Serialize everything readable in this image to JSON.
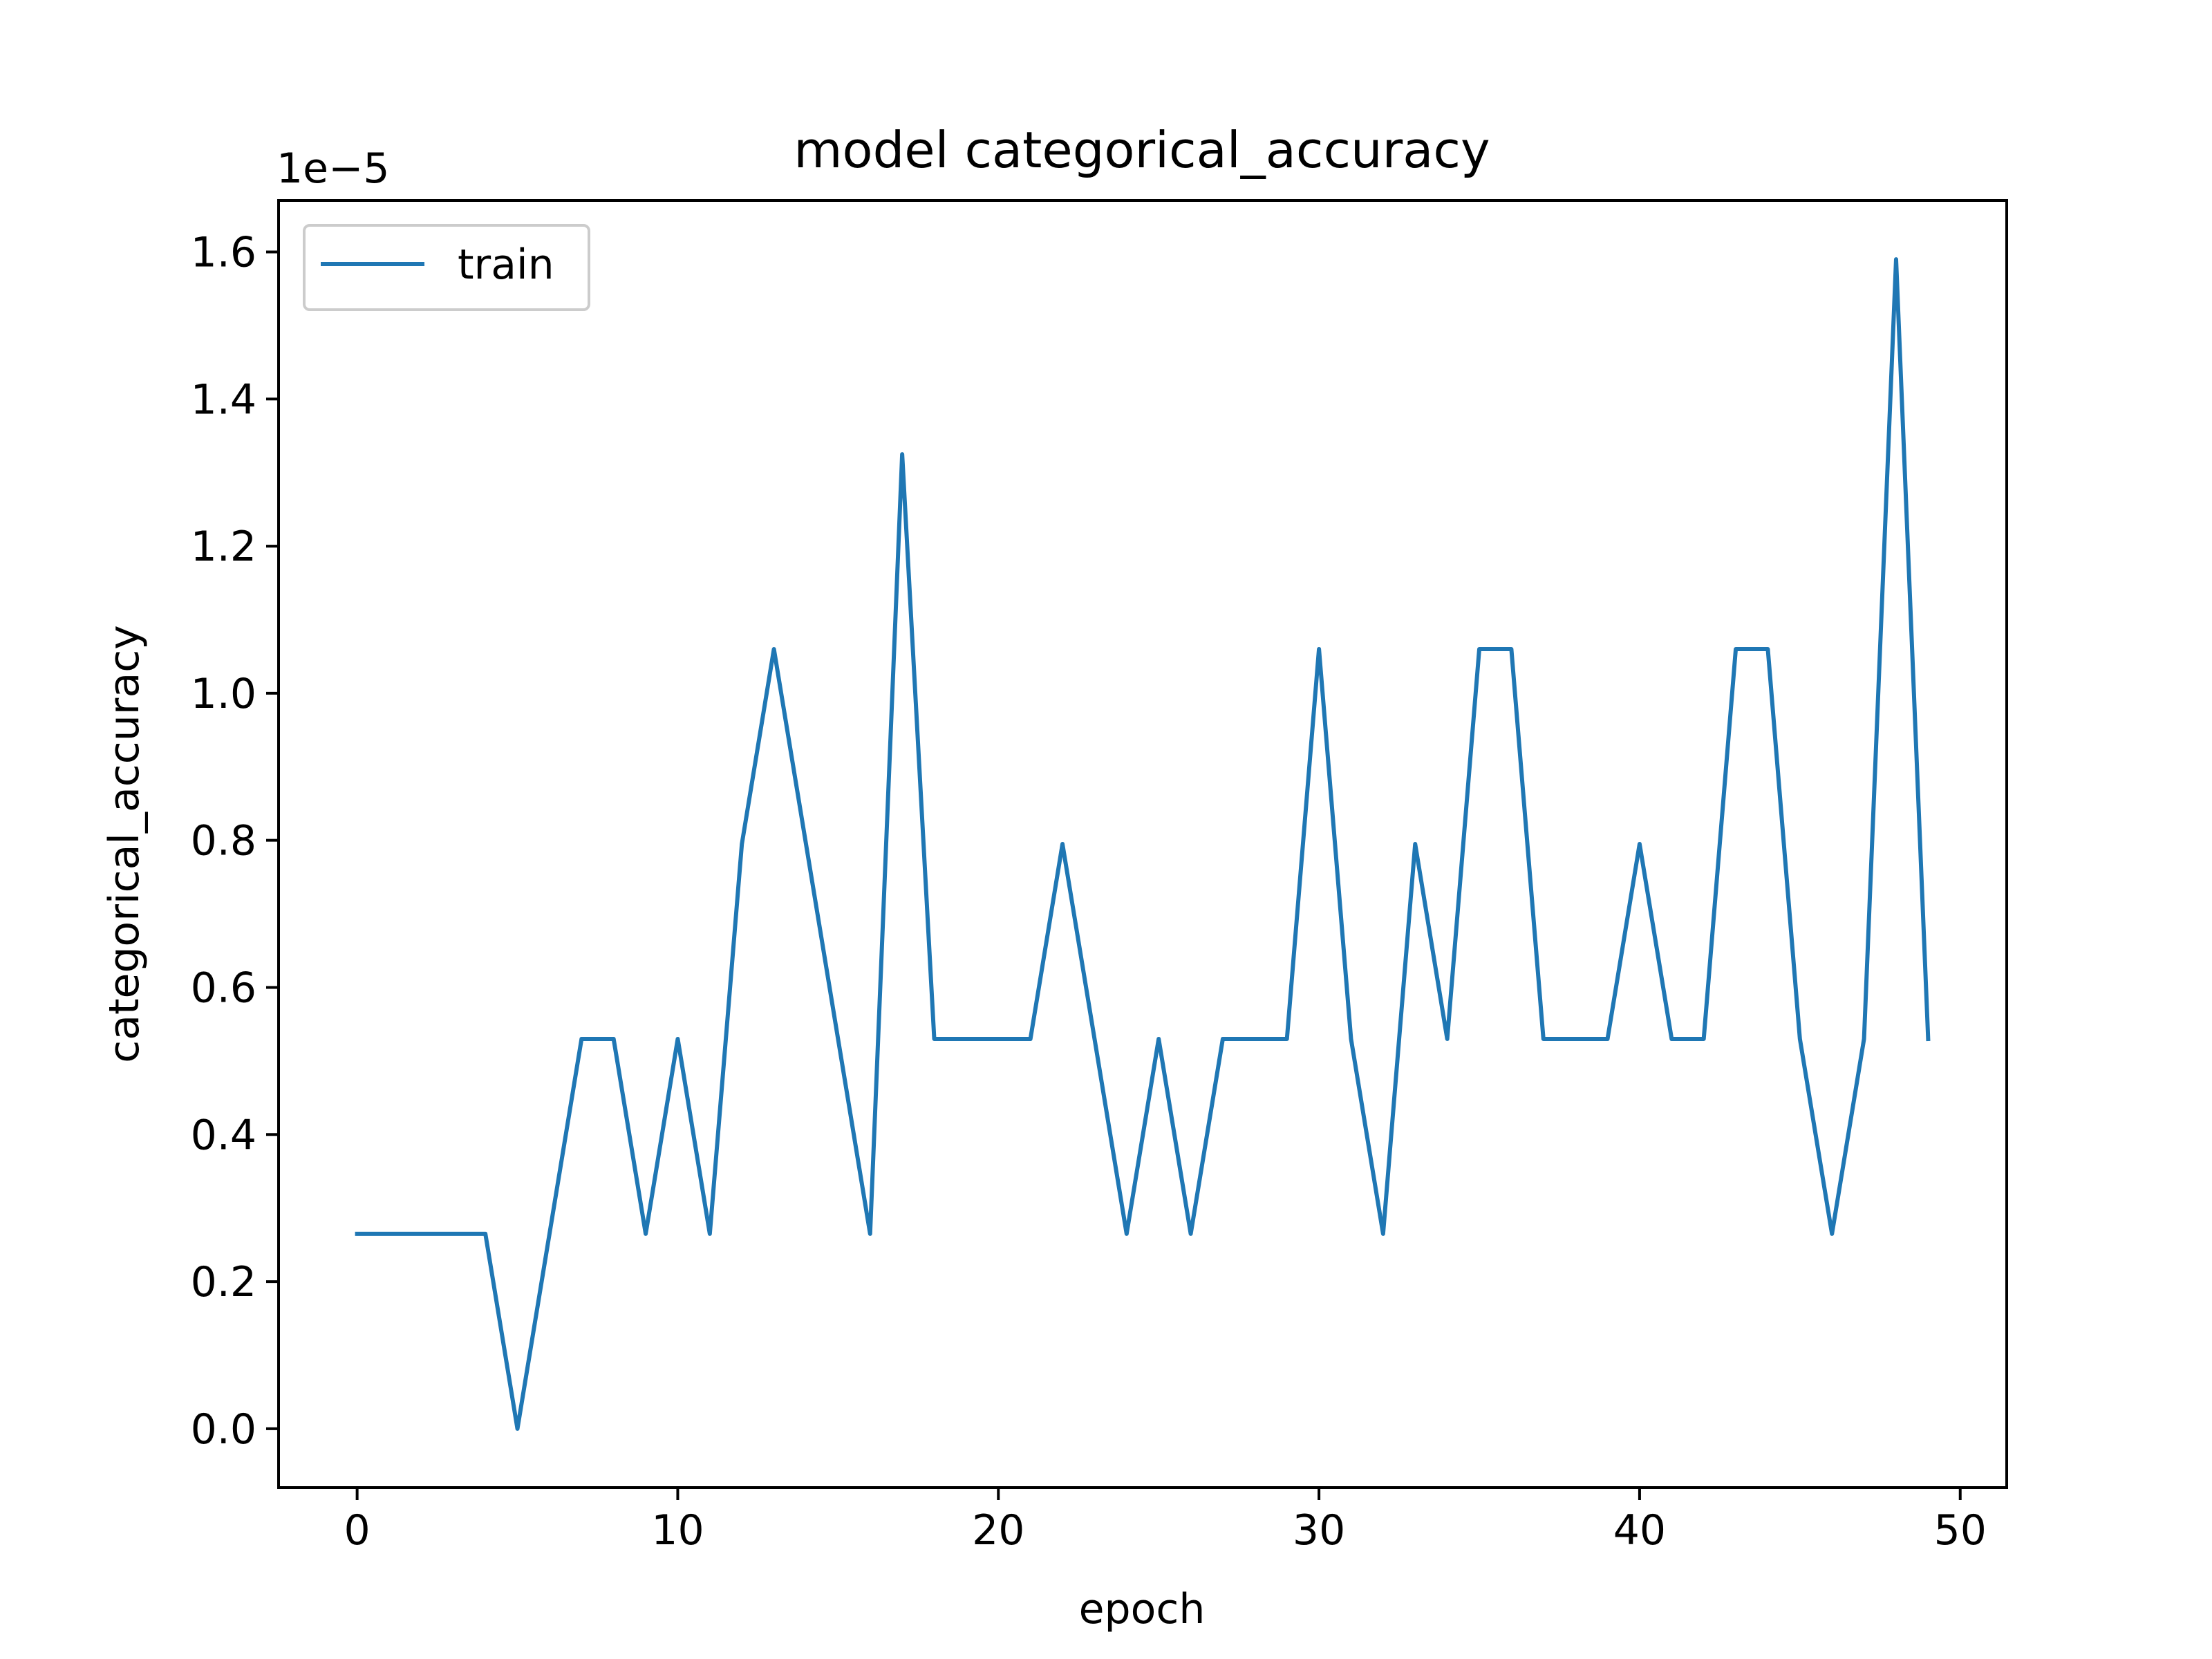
{
  "chart_data": {
    "type": "line",
    "title": "model categorical_accuracy",
    "xlabel": "epoch",
    "ylabel": "categorical_accuracy",
    "y_offset_label": "1e−5",
    "xlim": [
      -2.45,
      51.45
    ],
    "ylim": [
      -0.08,
      1.67
    ],
    "x_ticks": [
      0,
      10,
      20,
      30,
      40,
      50
    ],
    "y_ticks": [
      0.0,
      0.2,
      0.4,
      0.6,
      0.8,
      1.0,
      1.2,
      1.4,
      1.6
    ],
    "y_tick_labels": [
      "0.0",
      "0.2",
      "0.4",
      "0.6",
      "0.8",
      "1.0",
      "1.2",
      "1.4",
      "1.6"
    ],
    "grid": false,
    "legend": {
      "position": "top-left",
      "entries": [
        "train"
      ]
    },
    "series": [
      {
        "name": "train",
        "color": "#1f77b4",
        "x": [
          0,
          1,
          2,
          3,
          4,
          5,
          6,
          7,
          8,
          9,
          10,
          11,
          12,
          13,
          14,
          15,
          16,
          17,
          18,
          19,
          20,
          21,
          22,
          23,
          24,
          25,
          26,
          27,
          28,
          29,
          30,
          31,
          32,
          33,
          34,
          35,
          36,
          37,
          38,
          39,
          40,
          41,
          42,
          43,
          44,
          45,
          46,
          47,
          48,
          49
        ],
        "values": [
          0.265,
          0.265,
          0.265,
          0.265,
          0.265,
          0.0,
          0.265,
          0.53,
          0.53,
          0.265,
          0.53,
          0.265,
          0.795,
          1.06,
          0.795,
          0.53,
          0.265,
          1.325,
          0.53,
          0.53,
          0.53,
          0.53,
          0.795,
          0.53,
          0.265,
          0.53,
          0.265,
          0.53,
          0.53,
          0.53,
          1.06,
          0.53,
          0.265,
          0.795,
          0.53,
          1.06,
          1.06,
          0.53,
          0.53,
          0.53,
          0.795,
          0.53,
          0.53,
          1.06,
          1.06,
          0.53,
          0.265,
          0.53,
          1.59,
          0.53
        ]
      }
    ]
  }
}
